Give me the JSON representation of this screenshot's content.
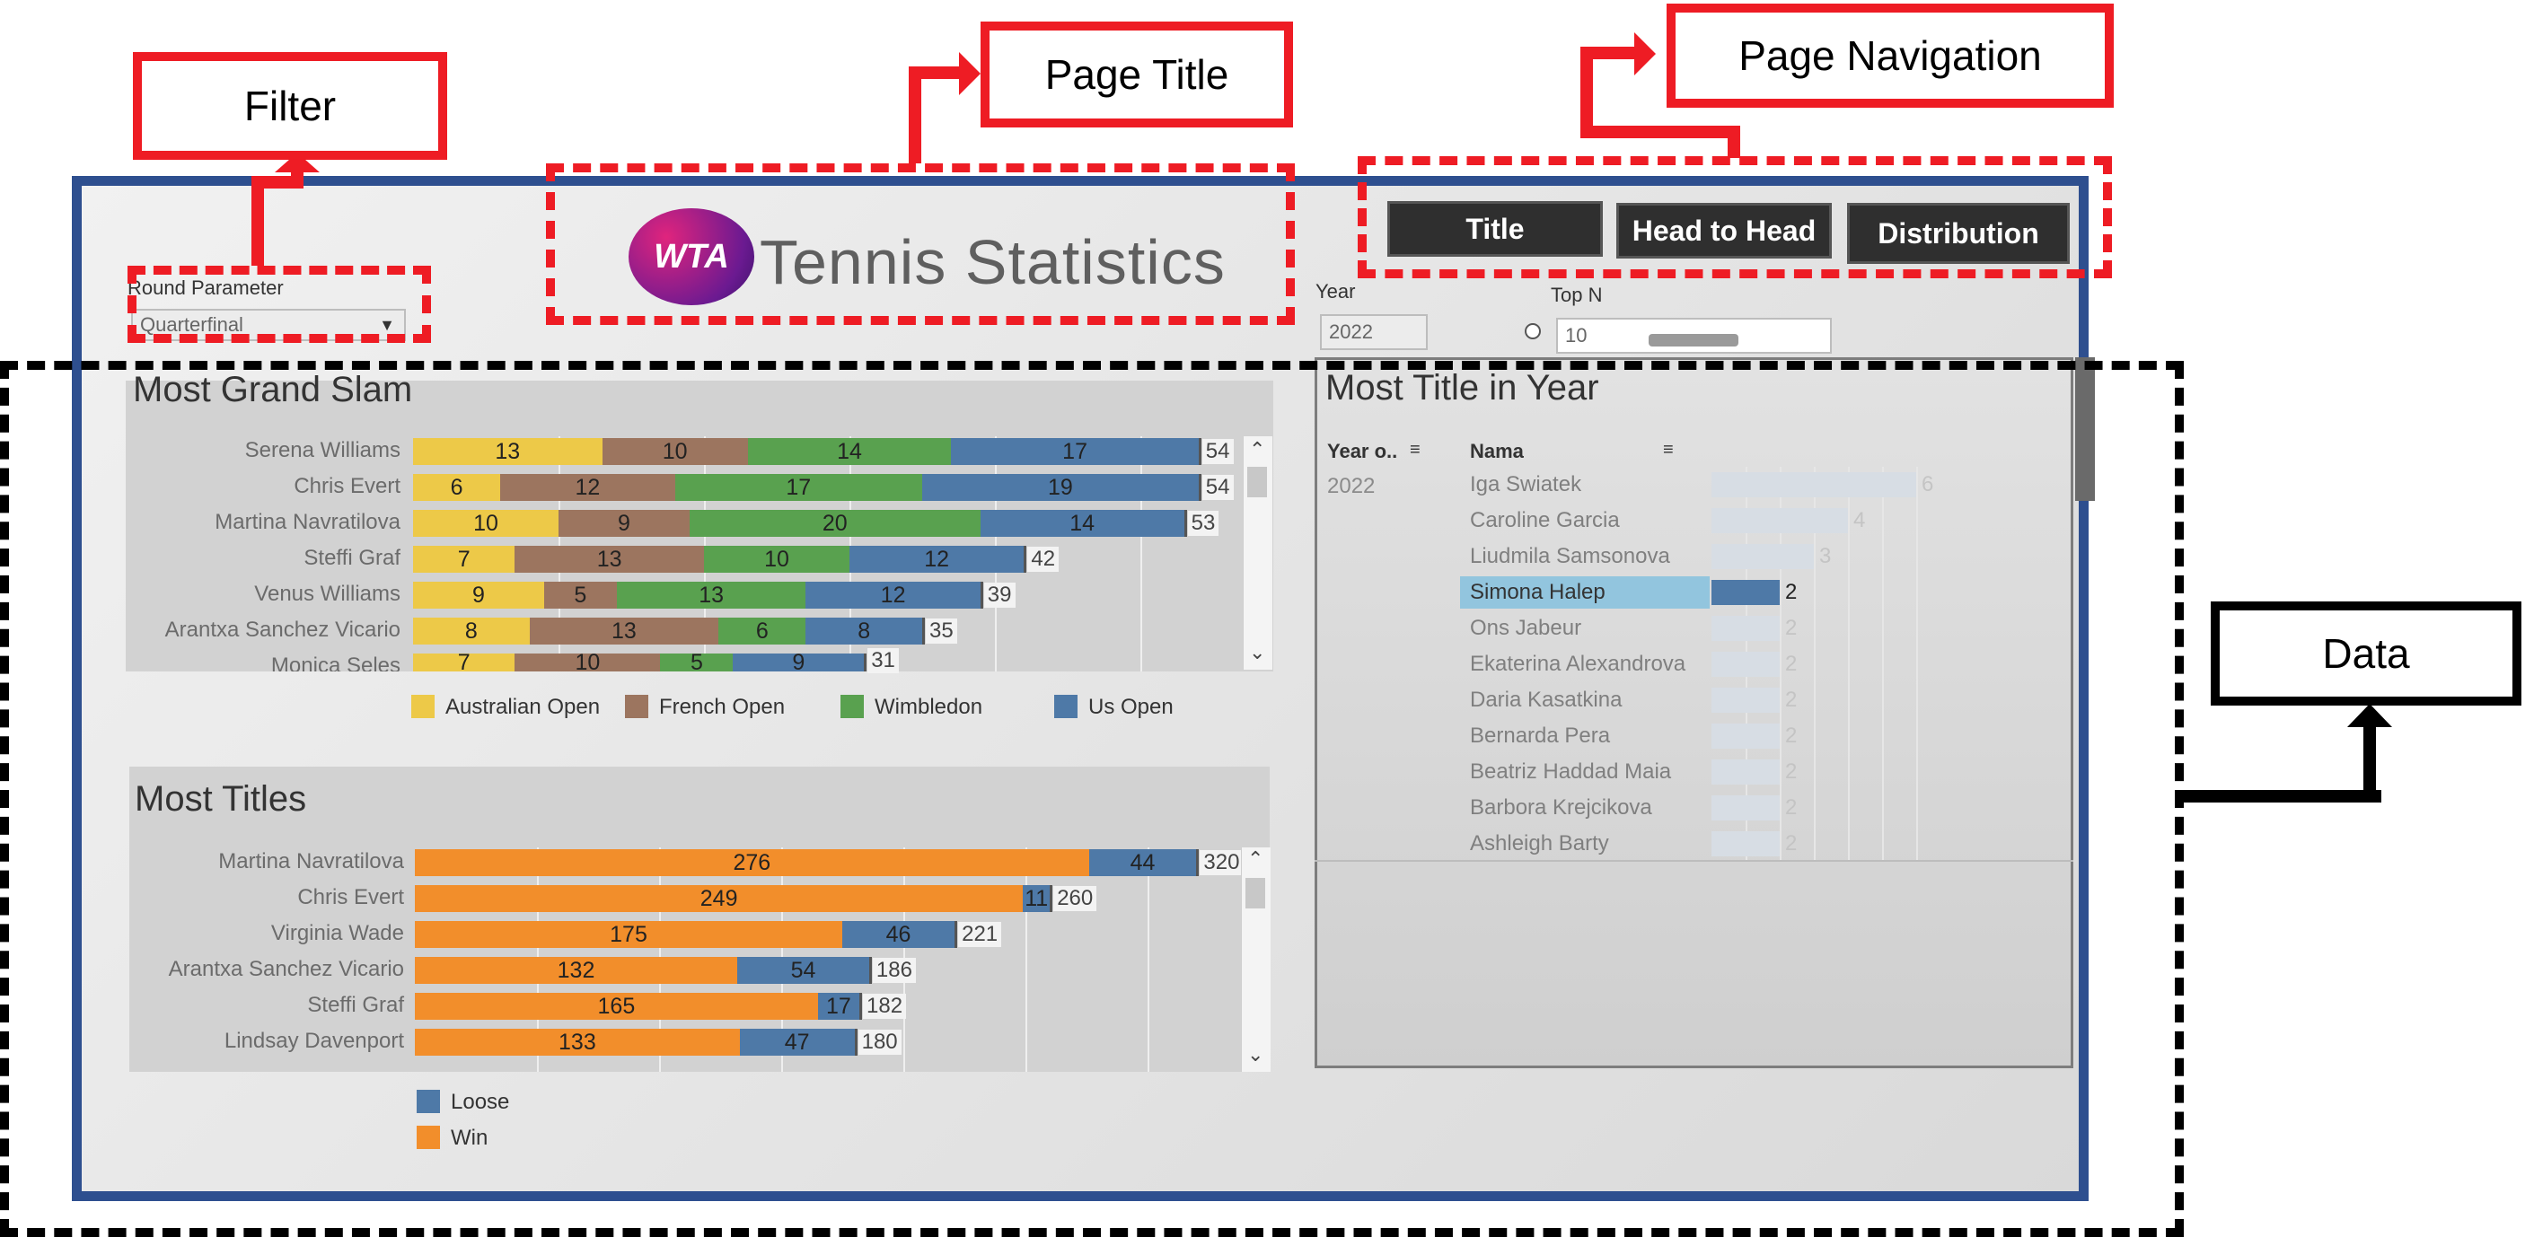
{
  "callouts": {
    "filter": "Filter",
    "page_title": "Page Title",
    "page_navigation": "Page Navigation",
    "data": "Data"
  },
  "header": {
    "logo_text": "WTA",
    "title": "Tennis Statistics"
  },
  "nav": {
    "title_btn": "Title",
    "h2h_btn": "Head to Head",
    "distribution_btn": "Distribution"
  },
  "filters": {
    "round_label": "Round Parameter",
    "round_value": "Quarterfinal",
    "year_label": "Year",
    "year_value": "2022",
    "topn_label": "Top N",
    "topn_value": "10"
  },
  "grand_slam": {
    "title": "Most Grand Slam",
    "legend": [
      "Australian Open",
      "French Open",
      "Wimbledon",
      "Us Open"
    ],
    "colors": [
      "#edc948",
      "#9c755f",
      "#59a14f",
      "#4e79a7"
    ]
  },
  "titles": {
    "title": "Most Titles",
    "legend": [
      "Loose",
      "Win"
    ],
    "colors": [
      "#4e79a7",
      "#f28e2b"
    ]
  },
  "title_year": {
    "title": "Most Title in Year",
    "col_year": "Year o..",
    "col_name": "Nama",
    "year": "2022",
    "highlight_color": "#92c5de",
    "bar_color": "#4e79a7"
  },
  "chart_data": [
    {
      "type": "bar",
      "title": "Most Grand Slam",
      "categories": [
        "Serena Williams",
        "Chris Evert",
        "Martina Navratilova",
        "Steffi Graf",
        "Venus Williams",
        "Arantxa Sanchez Vicario",
        "Monica Seles"
      ],
      "series": [
        {
          "name": "Australian Open",
          "values": [
            13,
            6,
            10,
            7,
            9,
            8,
            7
          ]
        },
        {
          "name": "French Open",
          "values": [
            10,
            12,
            9,
            13,
            5,
            13,
            10
          ]
        },
        {
          "name": "Wimbledon",
          "values": [
            14,
            17,
            20,
            10,
            13,
            6,
            5
          ]
        },
        {
          "name": "Us Open",
          "values": [
            17,
            19,
            14,
            12,
            12,
            8,
            9
          ]
        }
      ],
      "totals": [
        54,
        54,
        53,
        42,
        39,
        35,
        31
      ]
    },
    {
      "type": "bar",
      "title": "Most Titles",
      "categories": [
        "Martina Navratilova",
        "Chris Evert",
        "Virginia Wade",
        "Arantxa Sanchez Vicario",
        "Steffi Graf",
        "Lindsay Davenport"
      ],
      "series": [
        {
          "name": "Win",
          "values": [
            276,
            249,
            175,
            132,
            165,
            133
          ]
        },
        {
          "name": "Loose",
          "values": [
            44,
            11,
            46,
            54,
            17,
            47
          ]
        }
      ],
      "totals": [
        320,
        260,
        221,
        186,
        182,
        180
      ]
    },
    {
      "type": "bar",
      "title": "Most Title in Year",
      "categories": [
        "Iga Swiatek",
        "Caroline Garcia",
        "Liudmila Samsonova",
        "Simona Halep",
        "Ons Jabeur",
        "Ekaterina Alexandrova",
        "Daria Kasatkina",
        "Bernarda Pera",
        "Beatriz Haddad Maia",
        "Barbora Krejcikova",
        "Ashleigh Barty"
      ],
      "values": [
        6,
        4,
        3,
        2,
        2,
        2,
        2,
        2,
        2,
        2,
        2
      ],
      "highlighted": "Simona Halep"
    }
  ]
}
